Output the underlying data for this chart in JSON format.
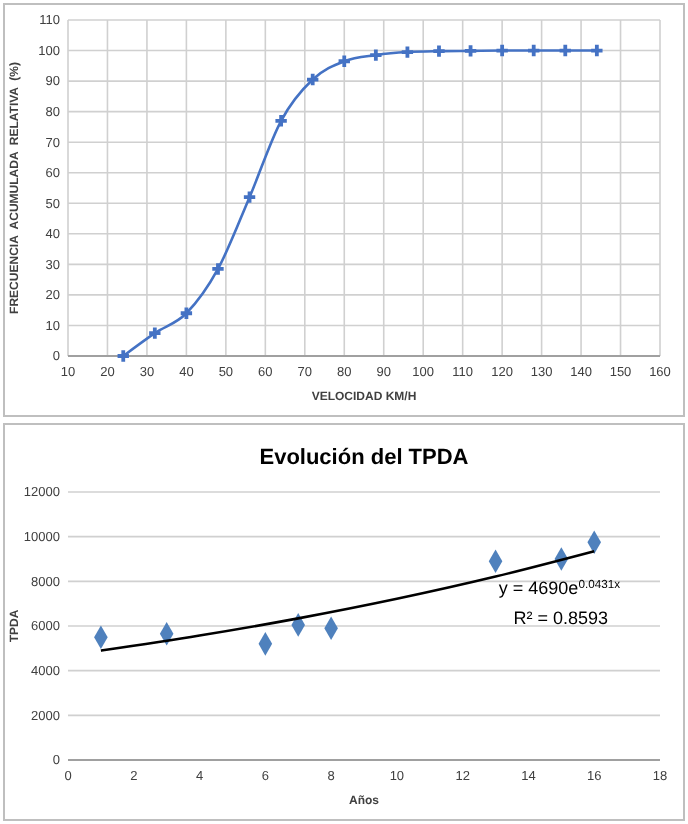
{
  "chart_data": [
    {
      "type": "line",
      "xlabel": "VELOCIDAD KM/H",
      "ylabel": "FRECUENCIA  ACUMULADA  RELATIVA  (%)",
      "xlim": [
        10,
        160
      ],
      "xticks": [
        10,
        20,
        30,
        40,
        50,
        60,
        70,
        80,
        90,
        100,
        110,
        120,
        130,
        140,
        150,
        160
      ],
      "ylim": [
        0,
        110
      ],
      "yticks": [
        0,
        10,
        20,
        30,
        40,
        50,
        60,
        70,
        80,
        90,
        100,
        110
      ],
      "grid": true,
      "marker": "cross",
      "series": [
        {
          "color": "#4472c4",
          "x": [
            24,
            32,
            40,
            48,
            56,
            64,
            72,
            80,
            88,
            96,
            104,
            112,
            120,
            128,
            136,
            144
          ],
          "values": [
            0,
            7.5,
            14,
            28.5,
            52,
            77,
            90.5,
            96.5,
            98.5,
            99.5,
            99.8,
            99.9,
            100,
            100,
            100,
            100
          ]
        }
      ]
    },
    {
      "type": "scatter",
      "title": "Evolución del TPDA",
      "xlabel": "Años",
      "ylabel": "TPDA",
      "xlim": [
        0,
        18
      ],
      "xticks": [
        0,
        2,
        4,
        6,
        8,
        10,
        12,
        14,
        16,
        18
      ],
      "ylim": [
        0,
        12000
      ],
      "yticks": [
        0,
        2000,
        4000,
        6000,
        8000,
        10000,
        12000
      ],
      "grid": "y",
      "marker": "diamond",
      "annotations": [
        "y = 4690e$^{0.0431x}$",
        "R² = 0.8593"
      ],
      "series": [
        {
          "color": "#4f81bd",
          "x": [
            1,
            3,
            6,
            7,
            8,
            13,
            15,
            16
          ],
          "values": [
            5500,
            5650,
            5200,
            6050,
            5900,
            8900,
            9000,
            9750
          ]
        },
        {
          "type": "line",
          "marker": "none",
          "color": "#000000",
          "x": [
            1,
            4,
            7,
            10,
            13,
            16
          ],
          "values": [
            4897,
            5573,
            6341,
            7217,
            8213,
            9346
          ]
        }
      ]
    }
  ]
}
